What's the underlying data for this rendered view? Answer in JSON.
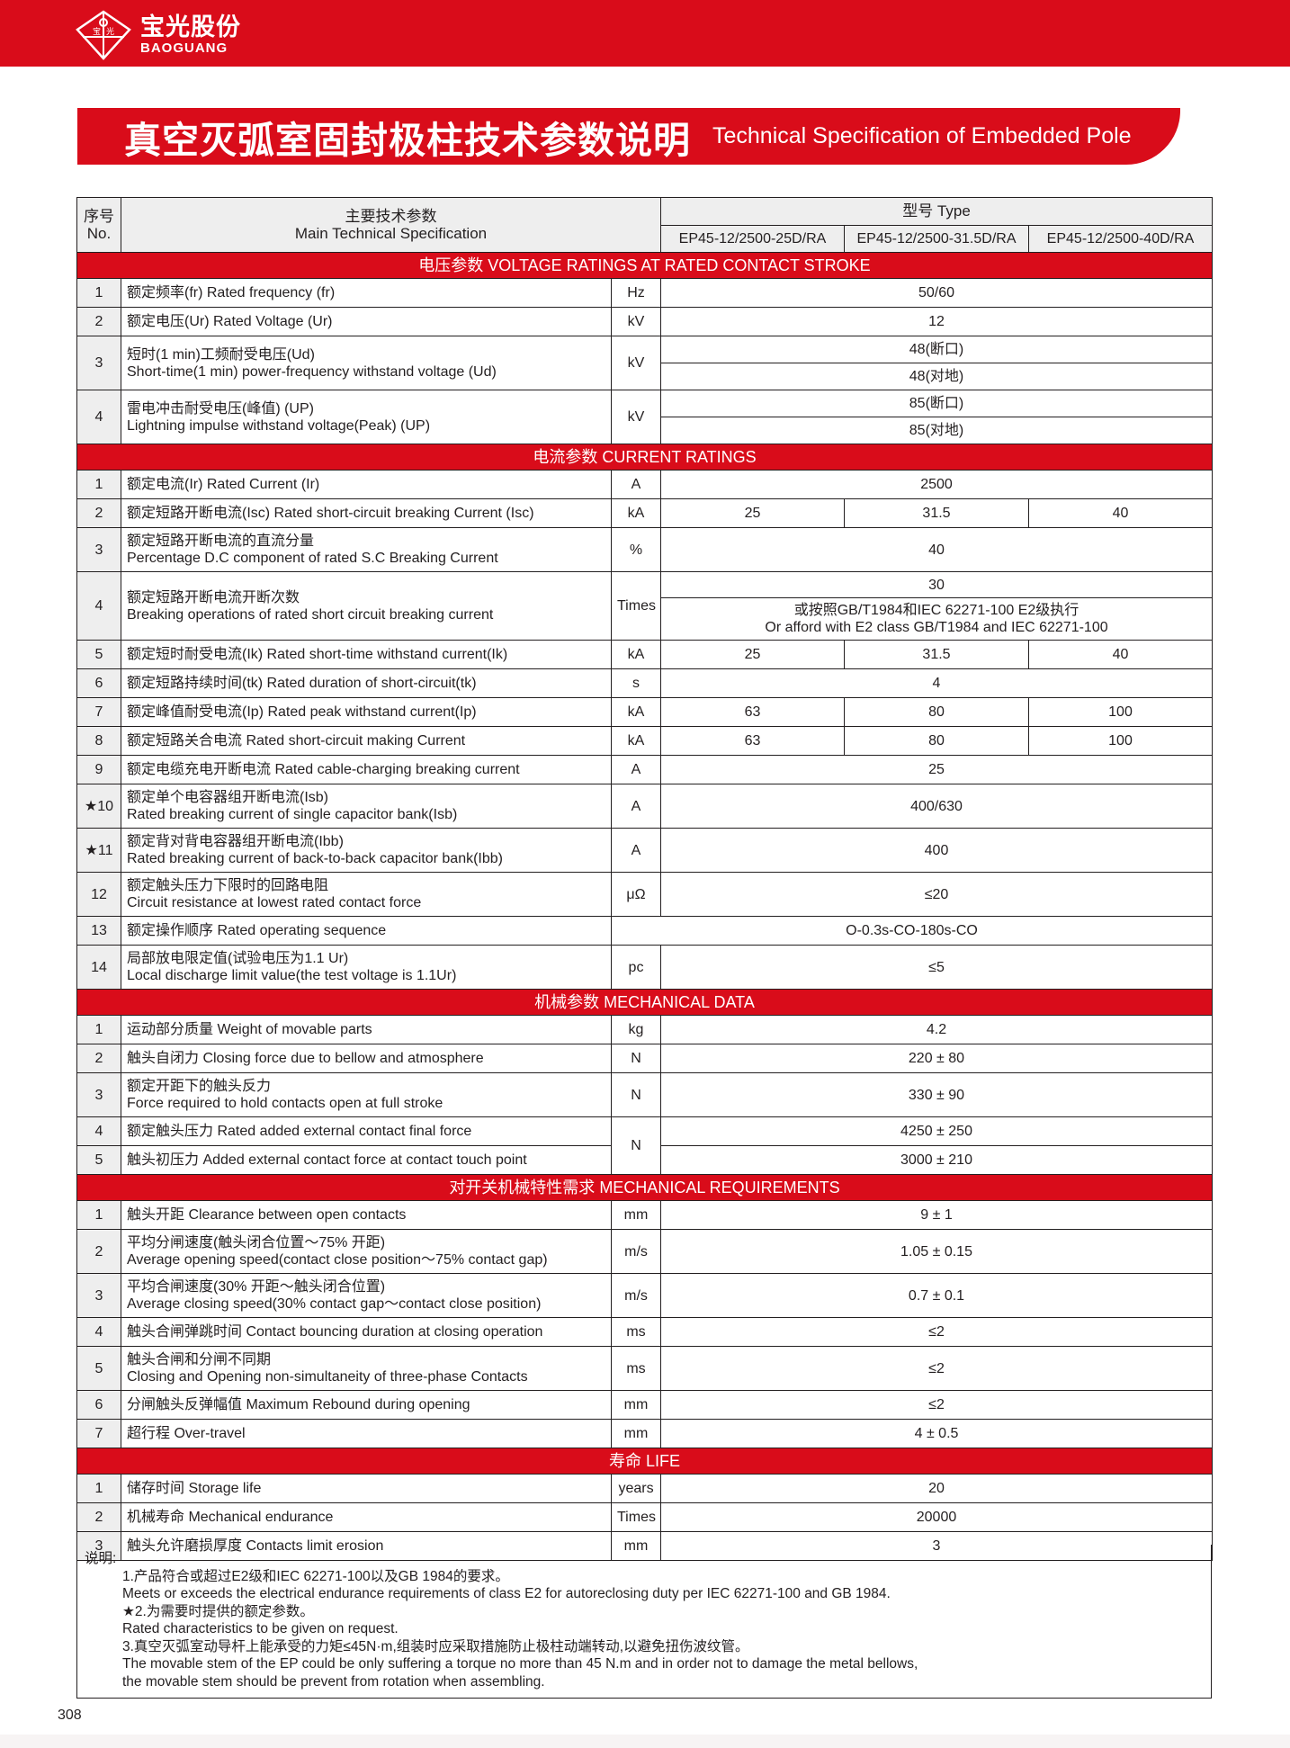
{
  "brand": {
    "logo_zh": "宝光股份",
    "logo_en": "BAOGUANG",
    "seal_text": "宝光"
  },
  "title": {
    "zh": "真空灭弧室固封极柱技术参数说明",
    "en": "Technical Specification of Embedded Pole"
  },
  "colors": {
    "accent": "#d90c1a",
    "header_bg": "#eeeeee"
  },
  "table": {
    "header": {
      "no_zh": "序号",
      "no_en": "No.",
      "param_zh": "主要技术参数",
      "param_en": "Main Technical Specification",
      "type_label": "型号  Type",
      "types": [
        "EP45-12/2500-25D/RA",
        "EP45-12/2500-31.5D/RA",
        "EP45-12/2500-40D/RA"
      ]
    },
    "sections": [
      {
        "title": "电压参数   VOLTAGE RATINGS AT RATED CONTACT STROKE",
        "rows": [
          {
            "no": "1",
            "zh": "额定频率(fr) Rated frequency (fr)",
            "unit": "Hz",
            "value": "50/60"
          },
          {
            "no": "2",
            "zh": "额定电压(Ur) Rated Voltage (Ur)",
            "unit": "kV",
            "value": "12"
          },
          {
            "no": "3",
            "zh": "短时(1 min)工频耐受电压(Ud)",
            "en": "Short-time(1 min) power-frequency withstand voltage (Ud)",
            "unit": "kV",
            "stack": [
              "48(断口)",
              "48(对地)"
            ]
          },
          {
            "no": "4",
            "zh": "雷电冲击耐受电压(峰值) (UP)",
            "en": "Lightning impulse withstand voltage(Peak) (UP)",
            "unit": "kV",
            "stack": [
              "85(断口)",
              "85(对地)"
            ]
          }
        ]
      },
      {
        "title": "电流参数  CURRENT RATINGS",
        "rows": [
          {
            "no": "1",
            "zh": "额定电流(Ir) Rated Current (Ir)",
            "unit": "A",
            "value": "2500"
          },
          {
            "no": "2",
            "zh": "额定短路开断电流(Isc) Rated short-circuit breaking Current (Isc)",
            "unit": "kA",
            "values": [
              "25",
              "31.5",
              "40"
            ]
          },
          {
            "no": "3",
            "zh": "额定短路开断电流的直流分量",
            "en": "Percentage D.C component of rated S.C Breaking Current",
            "unit": "%",
            "value": "40"
          },
          {
            "no": "4",
            "zh": "额定短路开断电流开断次数",
            "en": "Breaking operations of rated short circuit breaking current",
            "unit": "Times",
            "stack": [
              "30",
              "或按照GB/T1984和IEC 62271-100 E2级执行"
            ],
            "stack_en": "Or afford with E2 class GB/T1984 and IEC 62271-100"
          },
          {
            "no": "5",
            "zh": "额定短时耐受电流(Ik) Rated short-time withstand current(Ik)",
            "unit": "kA",
            "values": [
              "25",
              "31.5",
              "40"
            ]
          },
          {
            "no": "6",
            "zh": "额定短路持续时间(tk) Rated duration of short-circuit(tk)",
            "unit": "s",
            "value": "4"
          },
          {
            "no": "7",
            "zh": "额定峰值耐受电流(Ip) Rated peak withstand current(Ip)",
            "unit": "kA",
            "values": [
              "63",
              "80",
              "100"
            ]
          },
          {
            "no": "8",
            "zh": "额定短路关合电流 Rated short-circuit making Current",
            "unit": "kA",
            "values": [
              "63",
              "80",
              "100"
            ]
          },
          {
            "no": "9",
            "zh": "额定电缆充电开断电流 Rated cable-charging breaking current",
            "unit": "A",
            "value": "25"
          },
          {
            "no": "★10",
            "zh": "额定单个电容器组开断电流(Isb)",
            "en": "Rated breaking current of single capacitor bank(Isb)",
            "unit": "A",
            "value": "400/630"
          },
          {
            "no": "★11",
            "zh": "额定背对背电容器组开断电流(Ibb)",
            "en": "Rated breaking current of back-to-back capacitor bank(Ibb)",
            "unit": "A",
            "value": "400"
          },
          {
            "no": "12",
            "zh": "额定触头压力下限时的回路电阻",
            "en": "Circuit resistance at lowest rated contact force",
            "unit": "μΩ",
            "value": "≤20"
          },
          {
            "no": "13",
            "zh": "额定操作顺序 Rated operating sequence",
            "wide": "O-0.3s-CO-180s-CO"
          },
          {
            "no": "14",
            "zh": "局部放电限定值(试验电压为1.1 Ur)",
            "en": "Local discharge limit value(the test voltage is 1.1Ur)",
            "unit": "pc",
            "value": "≤5"
          }
        ]
      },
      {
        "title": "机械参数  MECHANICAL DATA",
        "rows": [
          {
            "no": "1",
            "zh": "运动部分质量 Weight of movable parts",
            "unit": "kg",
            "value": "4.2"
          },
          {
            "no": "2",
            "zh": "触头自闭力 Closing force due to bellow and atmosphere",
            "unit": "N",
            "value": "220 ± 80"
          },
          {
            "no": "3",
            "zh": "额定开距下的触头反力",
            "en": "Force required to hold contacts open at full stroke",
            "unit": "N",
            "value": "330 ± 90"
          },
          {
            "no": "4",
            "zh": "额定触头压力 Rated added external contact final force",
            "unit": "N",
            "unit_shared_next": true,
            "value": "4250 ± 250"
          },
          {
            "no": "5",
            "zh": "触头初压力 Added external contact force at contact touch point",
            "value": "3000 ± 210"
          }
        ]
      },
      {
        "title": "对开关机械特性需求  MECHANICAL REQUIREMENTS",
        "rows": [
          {
            "no": "1",
            "zh": "触头开距 Clearance between open contacts",
            "unit": "mm",
            "value": "9 ± 1"
          },
          {
            "no": "2",
            "zh": "平均分闸速度(触头闭合位置～75% 开距)",
            "en": "Average opening speed(contact close position～75% contact gap)",
            "unit": "m/s",
            "value": "1.05 ± 0.15"
          },
          {
            "no": "3",
            "zh": "平均合闸速度(30% 开距～触头闭合位置)",
            "en": "Average closing speed(30% contact gap～contact close position)",
            "unit": "m/s",
            "value": "0.7 ± 0.1"
          },
          {
            "no": "4",
            "zh": "触头合闸弹跳时间 Contact bouncing duration at closing operation",
            "unit": "ms",
            "value": "≤2"
          },
          {
            "no": "5",
            "zh": "触头合闸和分闸不同期",
            "en": "Closing and Opening non-simultaneity of three-phase Contacts",
            "unit": "ms",
            "value": "≤2"
          },
          {
            "no": "6",
            "zh": "分闸触头反弹幅值 Maximum Rebound during opening",
            "unit": "mm",
            "value": "≤2"
          },
          {
            "no": "7",
            "zh": "超行程 Over-travel",
            "unit": "mm",
            "value": "4 ± 0.5"
          }
        ]
      },
      {
        "title": "寿命  LIFE",
        "rows": [
          {
            "no": "1",
            "zh": "储存时间 Storage life",
            "unit": "years",
            "value": "20"
          },
          {
            "no": "2",
            "zh": "机械寿命 Mechanical endurance",
            "unit": "Times",
            "value": "20000"
          },
          {
            "no": "3",
            "zh": "触头允许磨损厚度 Contacts limit erosion",
            "unit": "mm",
            "value": "3"
          }
        ]
      }
    ]
  },
  "notes": {
    "heading": "说明:",
    "lines": [
      "1.产品符合或超过E2级和IEC 62271-100以及GB 1984的要求。",
      "Meets or exceeds the electrical endurance requirements of class E2 for autoreclosing duty per IEC 62271-100 and GB 1984.",
      "★2.为需要时提供的额定参数。",
      "Rated characteristics to be given on request.",
      "3.真空灭弧室动导杆上能承受的力矩≤45N·m,组装时应采取措施防止极柱动端转动,以避免扭伤波纹管。",
      "The movable stem of the EP could be only suffering a torque no more than 45 N.m and in order not to damage the metal bellows,",
      "the movable stem should be prevent from rotation when assembling."
    ]
  },
  "page_number": "308"
}
